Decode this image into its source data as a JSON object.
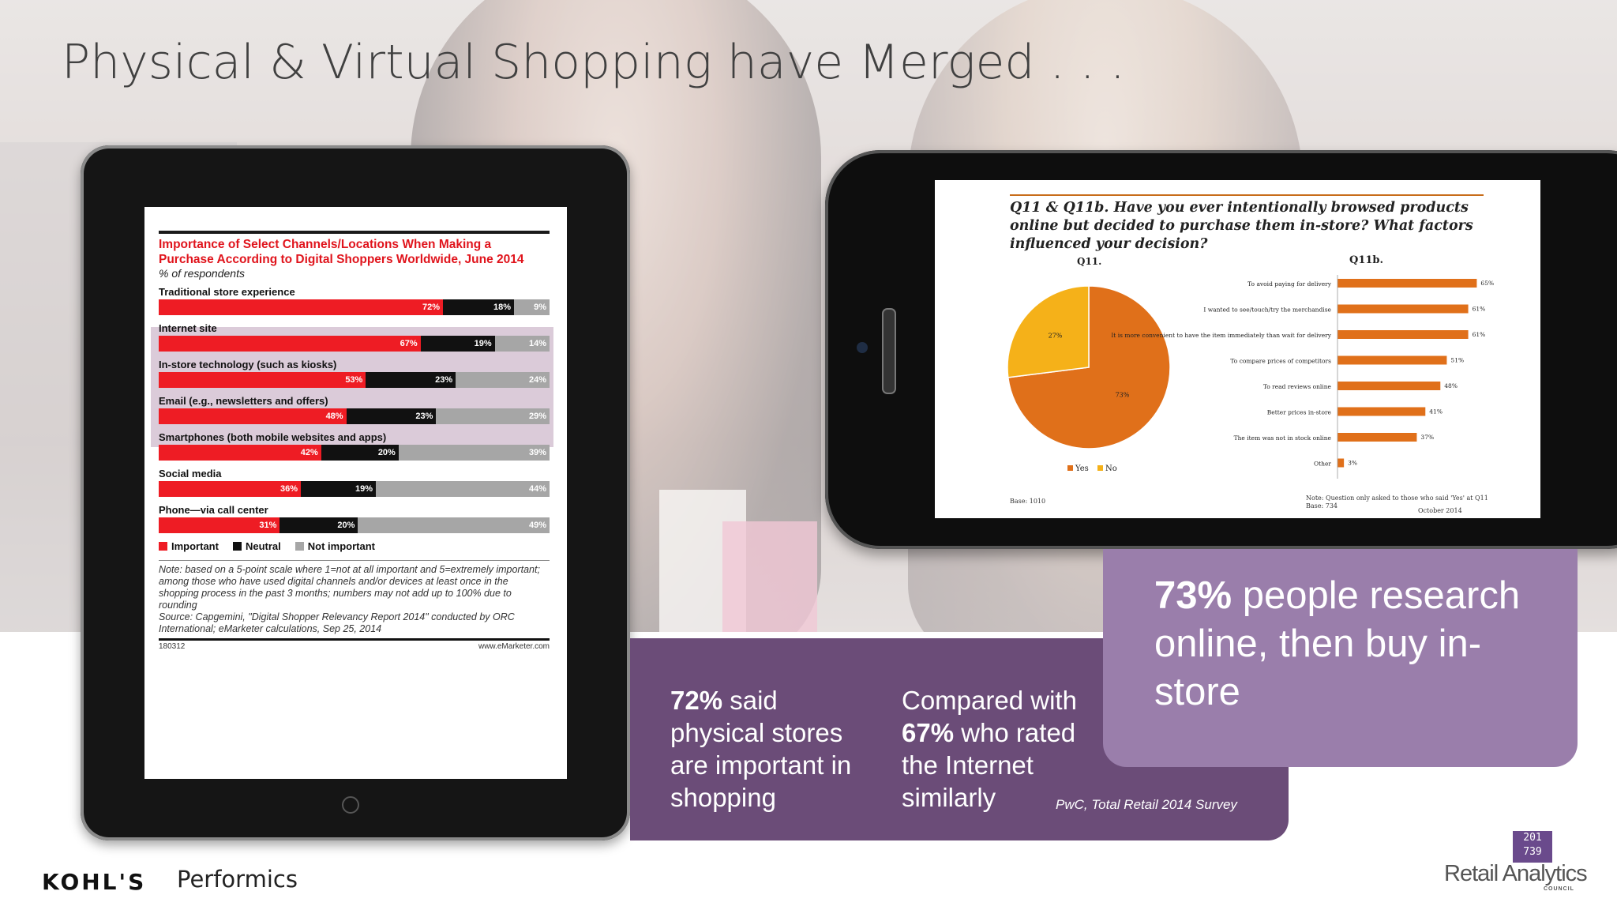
{
  "slide": {
    "title": "Physical & Virtual Shopping have Merged . . ."
  },
  "tablet_chart": {
    "title": "Importance of Select Channels/Locations When Making a Purchase According to Digital Shoppers Worldwide, June 2014",
    "subtitle": "% of respondents",
    "rows": [
      {
        "label": "Traditional store experience",
        "important": 72,
        "neutral": 18,
        "not_important": 9,
        "labels": [
          "72%",
          "18%",
          "9%"
        ]
      },
      {
        "label": "Internet site",
        "important": 67,
        "neutral": 19,
        "not_important": 14,
        "labels": [
          "67%",
          "19%",
          "14%"
        ]
      },
      {
        "label": "In-store technology (such as kiosks)",
        "important": 53,
        "neutral": 23,
        "not_important": 24,
        "labels": [
          "53%",
          "23%",
          "24%"
        ]
      },
      {
        "label": "Email (e.g., newsletters and offers)",
        "important": 48,
        "neutral": 23,
        "not_important": 29,
        "labels": [
          "48%",
          "23%",
          "29%"
        ]
      },
      {
        "label": "Smartphones (both mobile websites and apps)",
        "important": 42,
        "neutral": 20,
        "not_important": 39,
        "labels": [
          "42%",
          "20%",
          "39%"
        ]
      },
      {
        "label": "Social media",
        "important": 36,
        "neutral": 19,
        "not_important": 44,
        "labels": [
          "36%",
          "19%",
          "44%"
        ]
      },
      {
        "label": "Phone—via call center",
        "important": 31,
        "neutral": 20,
        "not_important": 49,
        "labels": [
          "31%",
          "20%",
          "49%"
        ]
      }
    ],
    "legend": [
      "Important",
      "Neutral",
      "Not important"
    ],
    "colors": {
      "important": "#ee1c24",
      "neutral": "#111111",
      "not_important": "#a6a6a6"
    },
    "note": "Note: based on a 5-point scale where 1=not at all important and 5=extremely important; among those who have used digital channels and/or devices at least once in the shopping process in the past 3 months; numbers may not add up to 100% due to rounding",
    "source": "Source: Capgemini, \"Digital Shopper Relevancy Report 2014\" conducted by ORC International; eMarketer calculations, Sep 25, 2014",
    "chart_id": "180312",
    "brand": "www.eMarketer.com"
  },
  "phone_chart": {
    "question": "Q11 & Q11b. Have you ever intentionally browsed products online but decided to purchase them in-store? What factors influenced your decision?",
    "q11_label": "Q11.",
    "q11b_label": "Q11b.",
    "pie": {
      "slices": [
        {
          "name": "Yes",
          "value": 73,
          "label": "73%",
          "color": "#e0701a"
        },
        {
          "name": "No",
          "value": 27,
          "label": "27%",
          "color": "#f5b119"
        }
      ]
    },
    "bars": {
      "items": [
        {
          "label": "To avoid paying for delivery",
          "value": 65,
          "text": "65%"
        },
        {
          "label": "I wanted to see/touch/try the merchandise",
          "value": 61,
          "text": "61%"
        },
        {
          "label": "It is more convenient to have the item immediately than wait for delivery",
          "value": 61,
          "text": "61%"
        },
        {
          "label": "To compare prices of competitors",
          "value": 51,
          "text": "51%"
        },
        {
          "label": "To read reviews online",
          "value": 48,
          "text": "48%"
        },
        {
          "label": "Better prices in-store",
          "value": 41,
          "text": "41%"
        },
        {
          "label": "The item was not in stock online",
          "value": 37,
          "text": "37%"
        },
        {
          "label": "Other",
          "value": 3,
          "text": "3%"
        }
      ],
      "ticks": [
        "0%",
        "10%",
        "20%",
        "30%",
        "40%",
        "50%",
        "60%",
        "70%"
      ],
      "xmax": 70,
      "color": "#e0701a"
    },
    "base_left": "Base: 1010",
    "note_right": "Note: Question only asked to those who said 'Yes' at Q11",
    "base_right": "Base: 734",
    "date": "October 2014"
  },
  "stats": {
    "stat1_pct": "72%",
    "stat1_text": " said physical stores are important in shopping",
    "stat2_pre": "Compared with ",
    "stat2_pct": "67%",
    "stat2_text": " who rated the Internet similarly",
    "source": "PwC, Total Retail 2014 Survey",
    "headline_pct": "73%",
    "headline_text": " people research online, then buy in-store"
  },
  "footer": {
    "kohls": "KOHL'S",
    "performics": "Performics",
    "rac_logo_line1": "201",
    "rac_logo_line2": "739",
    "rac_name": "Retail Analytics",
    "rac_sub": "COUNCIL"
  }
}
